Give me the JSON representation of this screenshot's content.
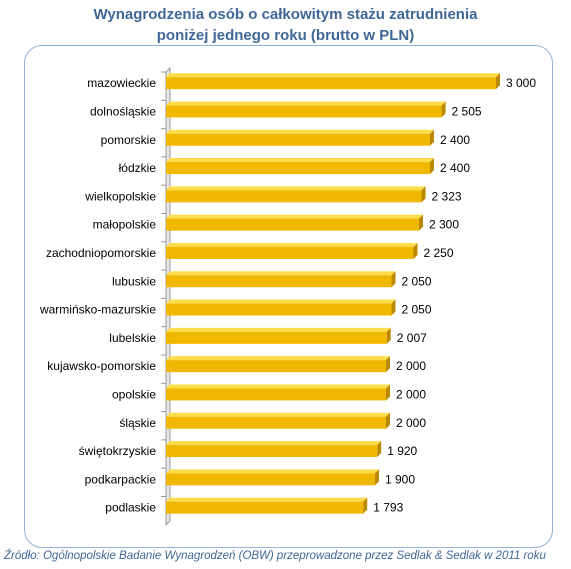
{
  "title_line1": "Wynagrodzenia osób  o całkowitym stażu zatrudnienia",
  "title_line2": "poniżej jednego roku (brutto w PLN)",
  "source": "Źródło: Ogólnopolskie Badanie Wynagrodzeń (OBW) przeprowadzone przez Sedlak & Sedlak w 2011 roku",
  "colors": {
    "bar": "#f0b800",
    "bar_top": "#ffdc4a",
    "bar_side": "#b98a00",
    "title": "#3f6797",
    "border": "#8fb3d9"
  },
  "chart_data": {
    "type": "bar",
    "orientation": "horizontal",
    "categories": [
      "mazowieckie",
      "dolnośląskie",
      "pomorskie",
      "łódzkie",
      "wielkopolskie",
      "małopolskie",
      "zachodniopomorskie",
      "lubuskie",
      "warmińsko-mazurskie",
      "lubelskie",
      "kujawsko-pomorskie",
      "opolskie",
      "śląskie",
      "świętokrzyskie",
      "podkarpackie",
      "podlaskie"
    ],
    "values": [
      3000,
      2505,
      2400,
      2400,
      2323,
      2300,
      2250,
      2050,
      2050,
      2007,
      2000,
      2000,
      2000,
      1920,
      1900,
      1793
    ],
    "value_labels": [
      "3 000",
      "2 505",
      "2 400",
      "2 400",
      "2 323",
      "2 300",
      "2 250",
      "2 050",
      "2 050",
      "2 007",
      "2 000",
      "2 000",
      "2 000",
      "1 920",
      "1 900",
      "1 793"
    ],
    "xlim": [
      0,
      3000
    ],
    "grid": false,
    "legend": "none"
  }
}
